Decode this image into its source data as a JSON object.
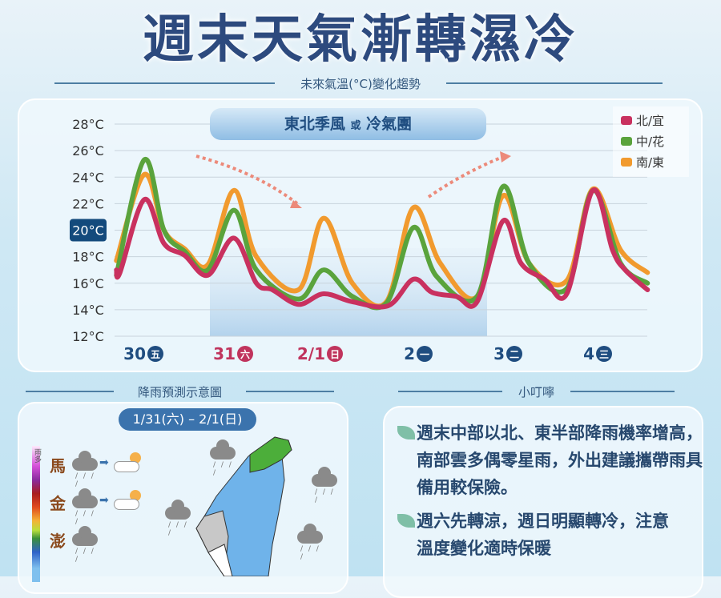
{
  "title": "週末天氣漸轉濕冷",
  "chart_section_title": "未來氣溫(°C)變化趨勢",
  "band_label": {
    "main1": "東北季風",
    "connector": "或",
    "main2": "冷氣團"
  },
  "chart_data": {
    "type": "line",
    "categories": [
      "30",
      "31",
      "2/1",
      "2",
      "3",
      "4"
    ],
    "weekday_badges": [
      "五",
      "六",
      "日",
      "一",
      "二",
      "三"
    ],
    "category_colors": [
      "#1f4d80",
      "#c0345d",
      "#c0345d",
      "#1f4d80",
      "#1f4d80",
      "#1f4d80"
    ],
    "y_ticks": [
      "28°C",
      "26°C",
      "24°C",
      "22°C",
      "20°C",
      "18°C",
      "16°C",
      "14°C",
      "12°C"
    ],
    "highlighted_tick": "20°C",
    "ylim": [
      12,
      28
    ],
    "grid": true,
    "legend": "top-right",
    "series": [
      {
        "name": "北/宜",
        "color": "#c9315f",
        "points": [
          [
            -0.31,
            17.0
          ],
          [
            -0.27,
            16.8
          ],
          [
            0,
            22.3
          ],
          [
            0.22,
            19
          ],
          [
            0.45,
            18.1
          ],
          [
            0.71,
            16.6
          ],
          [
            1,
            19.4
          ],
          [
            1.25,
            16
          ],
          [
            1.43,
            15.5
          ],
          [
            1.72,
            14.4
          ],
          [
            2,
            15.2
          ],
          [
            2.32,
            14.6
          ],
          [
            2.72,
            14.3
          ],
          [
            3,
            16.3
          ],
          [
            3.21,
            15.3
          ],
          [
            3.48,
            15
          ],
          [
            3.71,
            14.6
          ],
          [
            4,
            20.7
          ],
          [
            4.2,
            17.5
          ],
          [
            4.46,
            16.3
          ],
          [
            4.71,
            15.2
          ],
          [
            5,
            23.0
          ],
          [
            5.22,
            18.5
          ],
          [
            5.36,
            17
          ],
          [
            5.61,
            15.5
          ]
        ]
      },
      {
        "name": "中/花",
        "color": "#5aa33c",
        "points": [
          [
            -0.31,
            16.6
          ],
          [
            0,
            25.3
          ],
          [
            0.22,
            20
          ],
          [
            0.45,
            18.4
          ],
          [
            0.71,
            17
          ],
          [
            1,
            21.5
          ],
          [
            1.25,
            17
          ],
          [
            1.72,
            14.8
          ],
          [
            2,
            17
          ],
          [
            2.32,
            15
          ],
          [
            2.7,
            14.5
          ],
          [
            3,
            20.2
          ],
          [
            3.26,
            16.5
          ],
          [
            3.71,
            15
          ],
          [
            4,
            23.3
          ],
          [
            4.29,
            17.5
          ],
          [
            4.71,
            15.6
          ],
          [
            5,
            23
          ],
          [
            5.31,
            17.5
          ],
          [
            5.61,
            16
          ]
        ]
      },
      {
        "name": "南/東",
        "color": "#f19a2e",
        "points": [
          [
            -0.31,
            17.7
          ],
          [
            0,
            24.2
          ],
          [
            0.22,
            20
          ],
          [
            0.45,
            18.6
          ],
          [
            0.71,
            17.4
          ],
          [
            1,
            23
          ],
          [
            1.25,
            18
          ],
          [
            1.72,
            15.5
          ],
          [
            2,
            20.9
          ],
          [
            2.32,
            16
          ],
          [
            2.7,
            14.6
          ],
          [
            3,
            21.7
          ],
          [
            3.3,
            17.5
          ],
          [
            3.71,
            15
          ],
          [
            4,
            22.6
          ],
          [
            4.29,
            17.5
          ],
          [
            4.71,
            16.2
          ],
          [
            5,
            23.1
          ],
          [
            5.31,
            18.5
          ],
          [
            5.61,
            16.8
          ]
        ]
      }
    ]
  },
  "rain_section_title": "降雨預測示意圖",
  "rain_period": "1/31(六) – 2/1(日)",
  "rain_scale_label": "雨多",
  "islands": [
    "馬",
    "金",
    "澎"
  ],
  "tips_section_title": "小叮嚀",
  "tips": [
    "週末中部以北、東半部降雨機率增高，南部雲多偶零星雨，外出建議攜帶雨具備用較保險。",
    "週六先轉涼，週日明顯轉冷，注意溫度變化適時保暖"
  ]
}
